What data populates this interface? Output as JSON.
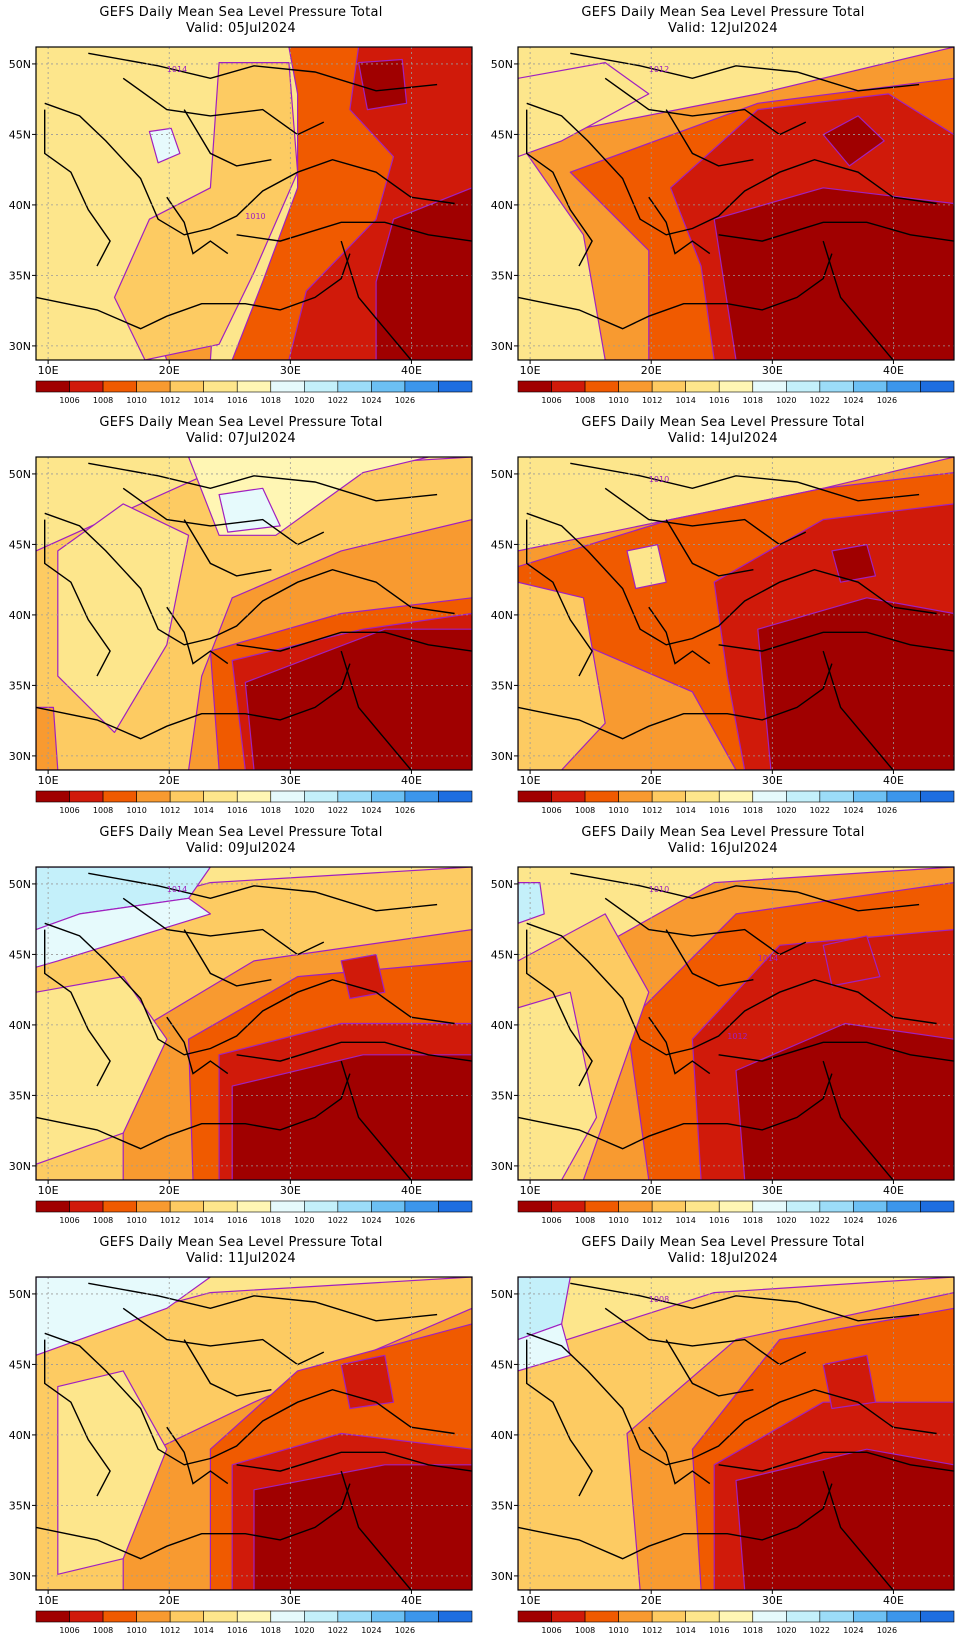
{
  "colorbar": {
    "colors": [
      "#a00000",
      "#d01a0a",
      "#f05a00",
      "#f89a30",
      "#fdcb62",
      "#fde68c",
      "#fff6b4",
      "#e6fafc",
      "#c4f0fa",
      "#9cdcf8",
      "#6cc0f4",
      "#3c96ec",
      "#1e6ee0"
    ],
    "levels": [
      "1006",
      "1008",
      "1010",
      "1012",
      "1014",
      "1016",
      "1018",
      "1020",
      "1022",
      "1024",
      "1026"
    ]
  },
  "axes": {
    "lon_ticks": [
      "10E",
      "20E",
      "30E",
      "40E"
    ],
    "lat_ticks": [
      "50N",
      "45N",
      "40N",
      "35N",
      "30N"
    ]
  },
  "panels": [
    {
      "title": "GEFS Daily Mean Sea Level Pressure Total",
      "valid": "Valid: 05Jul2024",
      "contour_labels": [
        "1014",
        "1010"
      ]
    },
    {
      "title": "GEFS Daily Mean Sea Level Pressure Total",
      "valid": "Valid: 12Jul2024",
      "contour_labels": [
        "1012"
      ]
    },
    {
      "title": "GEFS Daily Mean Sea Level Pressure Total",
      "valid": "Valid: 07Jul2024",
      "contour_labels": []
    },
    {
      "title": "GEFS Daily Mean Sea Level Pressure Total",
      "valid": "Valid: 14Jul2024",
      "contour_labels": [
        "1010"
      ]
    },
    {
      "title": "GEFS Daily Mean Sea Level Pressure Total",
      "valid": "Valid: 09Jul2024",
      "contour_labels": [
        "1014"
      ]
    },
    {
      "title": "GEFS Daily Mean Sea Level Pressure Total",
      "valid": "Valid: 16Jul2024",
      "contour_labels": [
        "1010",
        "1012",
        "1014"
      ]
    },
    {
      "title": "GEFS Daily Mean Sea Level Pressure Total",
      "valid": "Valid: 11Jul2024",
      "contour_labels": []
    },
    {
      "title": "GEFS Daily Mean Sea Level Pressure Total",
      "valid": "Valid: 18Jul2024",
      "contour_labels": [
        "1008"
      ]
    }
  ]
}
